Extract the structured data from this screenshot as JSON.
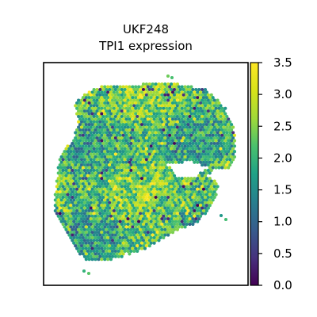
{
  "chart_data": {
    "type": "heatmap",
    "title": "UKF248",
    "subtitle": "TPI1 expression",
    "xlabel": "",
    "ylabel": "",
    "colormap": "viridis",
    "colorbar": {
      "min": 0.0,
      "max": 3.5,
      "ticks": [
        "0.0",
        "0.5",
        "1.0",
        "1.5",
        "2.0",
        "2.5",
        "3.0",
        "3.5"
      ],
      "tick_values": [
        0.0,
        0.5,
        1.0,
        1.5,
        2.0,
        2.5,
        3.0,
        3.5
      ],
      "position": "right"
    },
    "typical_value": 2.1,
    "frame": true,
    "grid": false
  }
}
